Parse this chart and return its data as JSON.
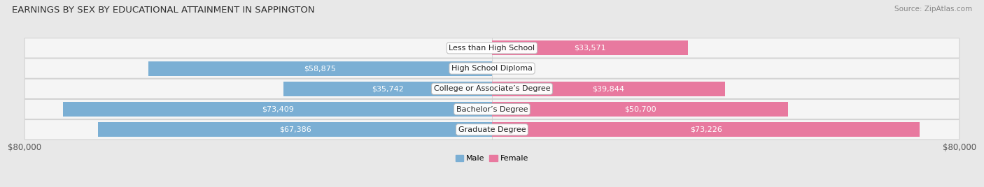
{
  "title": "EARNINGS BY SEX BY EDUCATIONAL ATTAINMENT IN SAPPINGTON",
  "source": "Source: ZipAtlas.com",
  "categories": [
    "Less than High School",
    "High School Diploma",
    "College or Associate’s Degree",
    "Bachelor’s Degree",
    "Graduate Degree"
  ],
  "male_values": [
    0,
    58875,
    35742,
    73409,
    67386
  ],
  "female_values": [
    33571,
    0,
    39844,
    50700,
    73226
  ],
  "male_color": "#7bafd4",
  "female_color": "#e8799f",
  "max_value": 80000,
  "bg_color": "#e8e8e8",
  "row_bg_color": "#f5f5f5",
  "row_edge_color": "#d0d0d0",
  "bar_height": 0.72,
  "title_fontsize": 9.5,
  "label_fontsize": 8.0,
  "axis_label_fontsize": 8.5,
  "category_fontsize": 8.0,
  "source_fontsize": 7.5
}
